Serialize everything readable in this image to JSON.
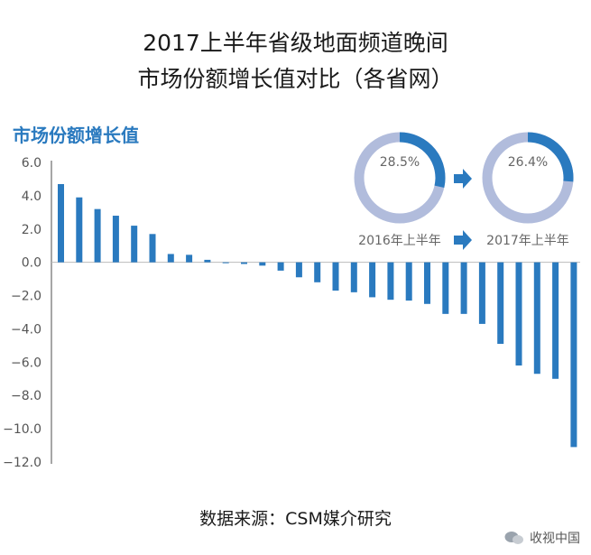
{
  "title_line1": "2017上半年省级地面频道晚间",
  "title_line2": "市场份额增长值对比（各省网）",
  "source": "数据来源：CSM媒介研究",
  "watermark": "收视中国",
  "colors": {
    "bar": "#2a7abf",
    "ring_light": "#b1bcdc",
    "ring_dark": "#2a7abf",
    "arrow": "#2a7abf"
  },
  "inset": {
    "left_value": "28.5%",
    "right_value": "26.4%",
    "left_share": 28.5,
    "right_share": 26.4,
    "left_label": "2016年上半年",
    "right_label": "2017年上半年"
  },
  "chart_data": {
    "type": "bar",
    "title": "市场份额增长值",
    "ylim": [
      -12,
      6
    ],
    "yticks": [
      "6.0",
      "4.0",
      "2.0",
      "0.0",
      "−2.0",
      "−4.0",
      "−6.0",
      "−8.0",
      "−10.0",
      "−12.0"
    ],
    "ytick_values": [
      6,
      4,
      2,
      0,
      -2,
      -4,
      -6,
      -8,
      -10,
      -12
    ],
    "values": [
      4.7,
      3.9,
      3.2,
      2.8,
      2.2,
      1.7,
      0.5,
      0.45,
      0.15,
      -0.05,
      -0.1,
      -0.2,
      -0.5,
      -0.9,
      -1.2,
      -1.7,
      -1.8,
      -2.1,
      -2.25,
      -2.3,
      -2.5,
      -3.1,
      -3.1,
      -3.7,
      -4.9,
      -6.2,
      -6.7,
      -7.0,
      -11.1
    ]
  }
}
